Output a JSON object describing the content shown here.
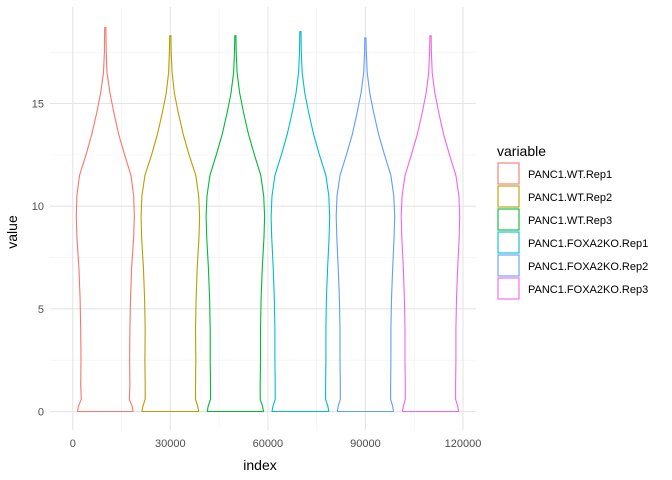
{
  "chart_data": {
    "type": "violin",
    "xlabel": "index",
    "ylabel": "value",
    "xlim": [
      -7000,
      124000
    ],
    "ylim": [
      -0.9,
      19.7
    ],
    "x_ticks": [
      0,
      30000,
      60000,
      90000,
      120000
    ],
    "x_tick_labels": [
      "0",
      "30000",
      "60000",
      "90000",
      "120000"
    ],
    "y_ticks": [
      0,
      5,
      10,
      15
    ],
    "y_tick_labels": [
      "0",
      "5",
      "10",
      "15"
    ],
    "grid": true,
    "legend": {
      "title": "variable",
      "position": "right"
    },
    "series": [
      {
        "name": "PANC1.WT.Rep1",
        "color": "#F8766D",
        "center": 10000,
        "max": 18.7,
        "profile": [
          [
            0,
            0.95
          ],
          [
            0.25,
            0.92
          ],
          [
            0.6,
            0.82
          ],
          [
            1.3,
            0.84
          ],
          [
            2.5,
            0.83
          ],
          [
            4,
            0.84
          ],
          [
            5.5,
            0.86
          ],
          [
            7,
            0.9
          ],
          [
            8.5,
            0.97
          ],
          [
            9.5,
            0.99
          ],
          [
            10.5,
            0.97
          ],
          [
            11.5,
            0.88
          ],
          [
            12.5,
            0.66
          ],
          [
            13.5,
            0.46
          ],
          [
            14.5,
            0.3
          ],
          [
            15.5,
            0.16
          ],
          [
            16.5,
            0.06
          ],
          [
            17.5,
            0.03
          ],
          [
            18.7,
            0.02
          ]
        ]
      },
      {
        "name": "PANC1.WT.Rep2",
        "color": "#B79F00",
        "center": 30000,
        "max": 18.3,
        "profile": [
          [
            0,
            0.97
          ],
          [
            0.25,
            0.94
          ],
          [
            0.6,
            0.86
          ],
          [
            1.3,
            0.86
          ],
          [
            2.5,
            0.87
          ],
          [
            4,
            0.86
          ],
          [
            5.5,
            0.88
          ],
          [
            7,
            0.92
          ],
          [
            8.5,
            0.98
          ],
          [
            9.5,
            1.0
          ],
          [
            10.5,
            0.97
          ],
          [
            11.5,
            0.87
          ],
          [
            12.5,
            0.64
          ],
          [
            13.5,
            0.44
          ],
          [
            14.5,
            0.28
          ],
          [
            15.5,
            0.14
          ],
          [
            16.5,
            0.06
          ],
          [
            17.5,
            0.03
          ],
          [
            18.3,
            0.02
          ]
        ]
      },
      {
        "name": "PANC1.WT.Rep3",
        "color": "#00BA38",
        "center": 50000,
        "max": 18.3,
        "profile": [
          [
            0,
            0.96
          ],
          [
            0.25,
            0.93
          ],
          [
            0.6,
            0.85
          ],
          [
            1.3,
            0.85
          ],
          [
            2.5,
            0.86
          ],
          [
            4,
            0.86
          ],
          [
            5.5,
            0.88
          ],
          [
            7,
            0.92
          ],
          [
            8.5,
            0.98
          ],
          [
            9.5,
            1.0
          ],
          [
            10.5,
            0.97
          ],
          [
            11.5,
            0.87
          ],
          [
            12.5,
            0.65
          ],
          [
            13.5,
            0.45
          ],
          [
            14.5,
            0.29
          ],
          [
            15.5,
            0.15
          ],
          [
            16.5,
            0.06
          ],
          [
            17.5,
            0.03
          ],
          [
            18.3,
            0.02
          ]
        ]
      },
      {
        "name": "PANC1.FOXA2KO.Rep1",
        "color": "#00BFC4",
        "center": 70000,
        "max": 18.5,
        "profile": [
          [
            0,
            0.97
          ],
          [
            0.25,
            0.94
          ],
          [
            0.6,
            0.86
          ],
          [
            1.3,
            0.86
          ],
          [
            2.5,
            0.87
          ],
          [
            4,
            0.87
          ],
          [
            5.5,
            0.89
          ],
          [
            7,
            0.93
          ],
          [
            8.5,
            0.98
          ],
          [
            9.5,
            1.0
          ],
          [
            10.5,
            0.97
          ],
          [
            11.5,
            0.87
          ],
          [
            12.5,
            0.65
          ],
          [
            13.5,
            0.45
          ],
          [
            14.5,
            0.29
          ],
          [
            15.5,
            0.15
          ],
          [
            16.5,
            0.06
          ],
          [
            17.5,
            0.03
          ],
          [
            18.5,
            0.02
          ]
        ]
      },
      {
        "name": "PANC1.FOXA2KO.Rep2",
        "color": "#619CFF",
        "center": 90000,
        "max": 18.2,
        "profile": [
          [
            0,
            0.96
          ],
          [
            0.25,
            0.93
          ],
          [
            0.6,
            0.86
          ],
          [
            1.3,
            0.86
          ],
          [
            2.5,
            0.87
          ],
          [
            4,
            0.87
          ],
          [
            5.5,
            0.89
          ],
          [
            7,
            0.93
          ],
          [
            8.5,
            0.98
          ],
          [
            9.5,
            1.0
          ],
          [
            10.5,
            0.97
          ],
          [
            11.5,
            0.87
          ],
          [
            12.5,
            0.65
          ],
          [
            13.5,
            0.45
          ],
          [
            14.5,
            0.29
          ],
          [
            15.5,
            0.15
          ],
          [
            16.5,
            0.06
          ],
          [
            17.5,
            0.03
          ],
          [
            18.2,
            0.02
          ]
        ]
      },
      {
        "name": "PANC1.FOXA2KO.Rep3",
        "color": "#F564E3",
        "center": 110000,
        "max": 18.3,
        "profile": [
          [
            0,
            0.96
          ],
          [
            0.25,
            0.93
          ],
          [
            0.6,
            0.86
          ],
          [
            1.3,
            0.86
          ],
          [
            2.5,
            0.87
          ],
          [
            4,
            0.87
          ],
          [
            5.5,
            0.89
          ],
          [
            7,
            0.93
          ],
          [
            8.5,
            0.98
          ],
          [
            9.5,
            1.0
          ],
          [
            10.5,
            0.97
          ],
          [
            11.5,
            0.87
          ],
          [
            12.5,
            0.65
          ],
          [
            13.5,
            0.45
          ],
          [
            14.5,
            0.29
          ],
          [
            15.5,
            0.15
          ],
          [
            16.5,
            0.06
          ],
          [
            17.5,
            0.03
          ],
          [
            18.3,
            0.02
          ]
        ]
      }
    ]
  }
}
